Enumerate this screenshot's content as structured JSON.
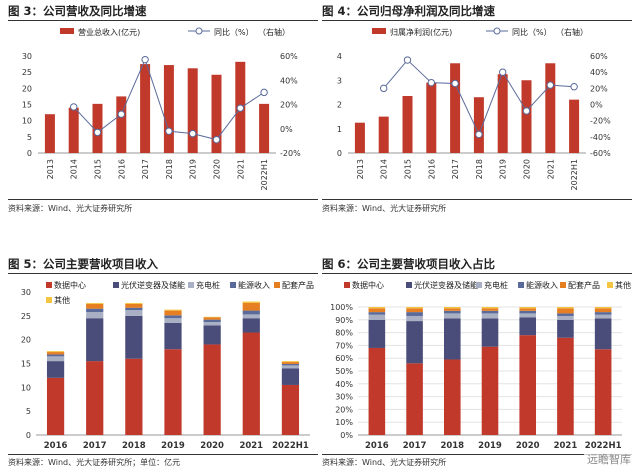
{
  "panels": [
    {
      "title": "图 3：公司营收及同比增速",
      "source": "资料来源：Wind、光大证券研究所"
    },
    {
      "title": "图 4：公司归母净利润及同比增速",
      "source": "资料来源：Wind、光大证券研究所"
    },
    {
      "title": "图 5：公司主要营收项目收入",
      "source": "资料来源：Wind、光大证券研究所；单位：亿元"
    },
    {
      "title": "图 6：公司主要营收项目收入占比",
      "source": "资料来源：Wind、光大证券研究所"
    }
  ],
  "watermark": "远瞻智库",
  "colors": {
    "red": "#C0392B",
    "navy": "#4A4D7A",
    "grey": "#A9B0C4",
    "orange": "#E67E22",
    "yellow": "#F4C542",
    "line": "#5A6A9A"
  },
  "chart_data": [
    {
      "type": "bar",
      "categories": [
        "2013",
        "2014",
        "2015",
        "2016",
        "2017",
        "2018",
        "2019",
        "2020",
        "2021",
        "2022H1"
      ],
      "series": [
        {
          "name": "营业总收入(亿元)",
          "type": "bar",
          "axis": "left",
          "values": [
            12,
            14,
            15.2,
            17.5,
            27.5,
            27.2,
            26.2,
            24.2,
            28.2,
            15.2
          ]
        },
        {
          "name": "同比（%）",
          "type": "line",
          "axis": "right",
          "values": [
            null,
            18,
            -3,
            12,
            57,
            -2,
            -4,
            -9,
            17,
            30
          ]
        }
      ],
      "legend_extra": "（右轴）",
      "ylim": [
        0,
        30
      ],
      "yticks": [
        0,
        5,
        10,
        15,
        20,
        25,
        30
      ],
      "ylim_right": [
        -20,
        60
      ],
      "yticks_right": [
        "-20%",
        "0%",
        "20%",
        "40%",
        "60%"
      ]
    },
    {
      "type": "bar",
      "categories": [
        "2013",
        "2014",
        "2015",
        "2016",
        "2017",
        "2018",
        "2019",
        "2020",
        "2021",
        "2022H1"
      ],
      "series": [
        {
          "name": "归属净利润(亿元)",
          "type": "bar",
          "axis": "left",
          "values": [
            1.25,
            1.5,
            2.35,
            2.9,
            3.7,
            2.3,
            3.25,
            3.0,
            3.7,
            2.2
          ]
        },
        {
          "name": "同比（%）",
          "type": "line",
          "axis": "right",
          "values": [
            null,
            20,
            55,
            27,
            26,
            -37,
            40,
            -8,
            24,
            22
          ]
        }
      ],
      "legend_extra": "（右轴）",
      "ylim": [
        0,
        4
      ],
      "yticks": [
        0,
        1,
        2,
        3,
        4
      ],
      "ylim_right": [
        -60,
        60
      ],
      "yticks_right": [
        "-60%",
        "-40%",
        "-20%",
        "0%",
        "20%",
        "40%",
        "60%"
      ]
    },
    {
      "type": "bar",
      "stacked": true,
      "categories": [
        "2016",
        "2017",
        "2018",
        "2019",
        "2020",
        "2021",
        "2022H1"
      ],
      "series": [
        {
          "name": "数据中心",
          "values": [
            12,
            15.5,
            16,
            18,
            19,
            21.5,
            10.5
          ]
        },
        {
          "name": "光伏逆变器及储能",
          "values": [
            3.5,
            9,
            9,
            5.5,
            4,
            3,
            3.5
          ]
        },
        {
          "name": "充电桩",
          "values": [
            1,
            1.3,
            1.2,
            1,
            0.7,
            0.8,
            0.6
          ]
        },
        {
          "name": "能源收入",
          "values": [
            0.4,
            0.7,
            0.5,
            0.6,
            0.5,
            0.8,
            0.3
          ]
        },
        {
          "name": "配套产品",
          "values": [
            0.5,
            1,
            0.8,
            1,
            0.5,
            1.6,
            0.4
          ]
        },
        {
          "name": "其他",
          "values": [
            0.2,
            0.2,
            0.2,
            0.2,
            0.1,
            0.3,
            0.2
          ]
        }
      ],
      "ylim": [
        0,
        30
      ],
      "yticks": [
        0,
        5,
        10,
        15,
        20,
        25,
        30
      ]
    },
    {
      "type": "bar",
      "stacked": true,
      "percent": true,
      "categories": [
        "2016",
        "2017",
        "2018",
        "2019",
        "2020",
        "2021",
        "2022H1"
      ],
      "series": [
        {
          "name": "数据中心",
          "values": [
            68,
            56,
            59,
            69,
            78,
            76,
            67
          ]
        },
        {
          "name": "光伏逆变器及储能",
          "values": [
            22,
            33,
            32,
            22,
            14,
            14,
            24
          ]
        },
        {
          "name": "充电桩",
          "values": [
            4,
            4,
            4,
            4,
            3,
            3,
            3
          ]
        },
        {
          "name": "能源收入",
          "values": [
            2,
            3,
            2,
            2,
            2,
            2,
            2
          ]
        },
        {
          "name": "配套产品",
          "values": [
            3,
            3,
            2,
            2,
            2,
            4,
            3
          ]
        },
        {
          "name": "其他",
          "values": [
            1,
            1,
            1,
            1,
            1,
            1,
            1
          ]
        }
      ],
      "ylim": [
        0,
        100
      ],
      "yticks": [
        "0%",
        "10%",
        "20%",
        "30%",
        "40%",
        "50%",
        "60%",
        "70%",
        "80%",
        "90%",
        "100%"
      ]
    }
  ]
}
